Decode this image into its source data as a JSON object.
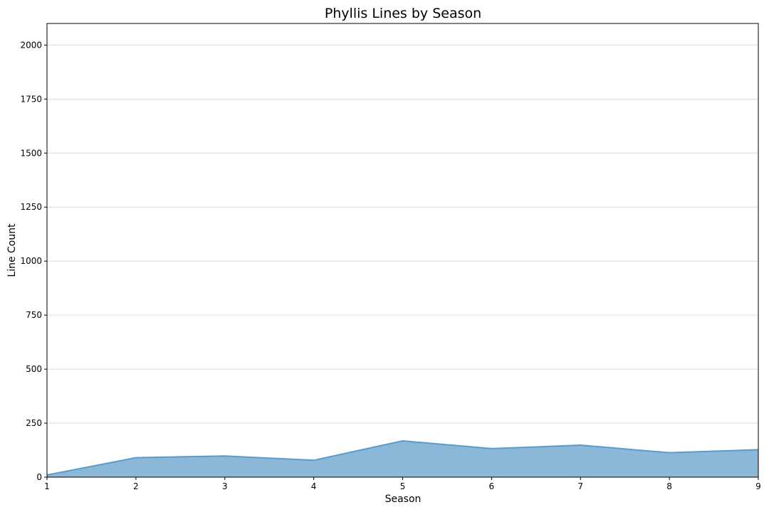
{
  "chart_data": {
    "type": "area",
    "title": "Phyllis Lines by Season",
    "xlabel": "Season",
    "ylabel": "Line Count",
    "x": [
      1,
      2,
      3,
      4,
      5,
      6,
      7,
      8,
      9
    ],
    "series": [
      {
        "values": [
          10,
          90,
          98,
          78,
          168,
          132,
          148,
          113,
          127
        ]
      }
    ],
    "xlim": [
      1,
      9
    ],
    "ylim": [
      0,
      2100
    ],
    "yticks": [
      0,
      250,
      500,
      750,
      1000,
      1250,
      1500,
      1750,
      2000
    ],
    "xticks": [
      1,
      2,
      3,
      4,
      5,
      6,
      7,
      8,
      9
    ],
    "grid": "horizontal",
    "colors": {
      "fill": "#8bb8d8",
      "line": "#5e9ac4",
      "grid": "#dddddd"
    }
  }
}
